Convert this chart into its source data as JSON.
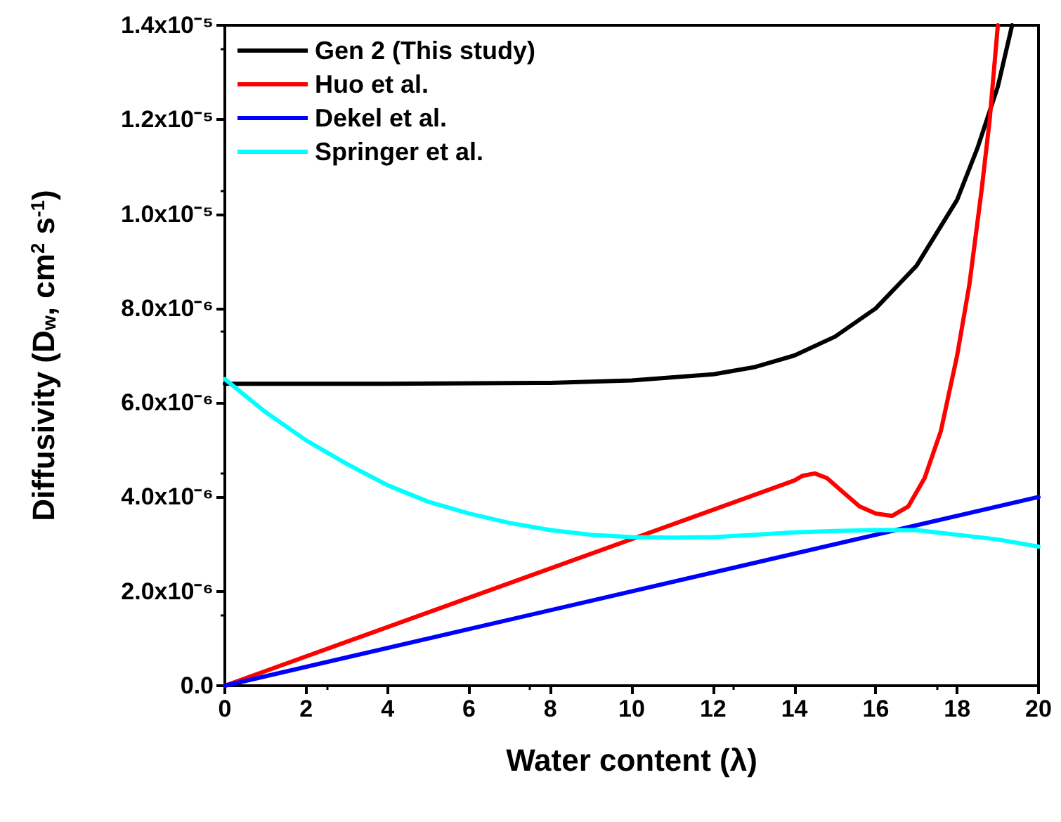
{
  "chart_data": {
    "type": "line",
    "xlabel": "Water content (λ)",
    "ylabel": "Diffusivity (D$_{w}$, cm$^{2}$ s$^{-1}$)",
    "xlim": [
      0,
      20
    ],
    "xticks": [
      0,
      2,
      4,
      6,
      8,
      10,
      12,
      14,
      16,
      18,
      20
    ],
    "ylim": [
      0,
      1.4e-05
    ],
    "yticks": [
      {
        "value": 0,
        "label": "0.0"
      },
      {
        "value": 2e-06,
        "label": "2.0x10⁻⁶"
      },
      {
        "value": 4e-06,
        "label": "4.0x10⁻⁶"
      },
      {
        "value": 6e-06,
        "label": "6.0x10⁻⁶"
      },
      {
        "value": 8e-06,
        "label": "8.0x10⁻⁶"
      },
      {
        "value": 1e-05,
        "label": "1.0x10⁻⁵"
      },
      {
        "value": 1.2e-05,
        "label": "1.2x10⁻⁵"
      },
      {
        "value": 1.4e-05,
        "label": "1.4x10⁻⁵"
      }
    ],
    "grid": false,
    "legend": "top left",
    "marker": "none",
    "line_style": "solid",
    "series": [
      {
        "name": "Gen 2 (This study)",
        "color": "#000000",
        "x": [
          0,
          4,
          8,
          10,
          12,
          13,
          14,
          15,
          16,
          17,
          18,
          18.5,
          19,
          19.35
        ],
        "values": [
          6.4e-06,
          6.4e-06,
          6.42e-06,
          6.47e-06,
          6.6e-06,
          6.75e-06,
          7e-06,
          7.4e-06,
          8e-06,
          8.9e-06,
          1.03e-05,
          1.14e-05,
          1.27e-05,
          1.4e-05
        ]
      },
      {
        "name": "Huo et al.",
        "color": "#ff0000",
        "x": [
          0,
          14,
          14.2,
          14.5,
          14.8,
          15.2,
          15.6,
          16,
          16.4,
          16.8,
          17.2,
          17.6,
          18,
          18.3,
          18.6,
          18.8,
          19.0
        ],
        "values": [
          0,
          4.35e-06,
          4.45e-06,
          4.5e-06,
          4.4e-06,
          4.1e-06,
          3.8e-06,
          3.65e-06,
          3.6e-06,
          3.8e-06,
          4.4e-06,
          5.4e-06,
          7e-06,
          8.5e-06,
          1.05e-05,
          1.2e-05,
          1.4e-05
        ]
      },
      {
        "name": "Dekel et al.",
        "color": "#0000ff",
        "x": [
          0,
          20
        ],
        "values": [
          0,
          4e-06
        ]
      },
      {
        "name": "Springer et al.",
        "color": "#00ffff",
        "x": [
          0,
          1,
          2,
          3,
          4,
          5,
          6,
          7,
          8,
          9,
          10,
          11,
          12,
          13,
          14,
          15,
          16,
          17,
          18,
          19,
          20
        ],
        "values": [
          6.5e-06,
          5.8e-06,
          5.2e-06,
          4.7e-06,
          4.25e-06,
          3.9e-06,
          3.65e-06,
          3.45e-06,
          3.3e-06,
          3.2e-06,
          3.15e-06,
          3.14e-06,
          3.15e-06,
          3.2e-06,
          3.25e-06,
          3.28e-06,
          3.3e-06,
          3.3e-06,
          3.2e-06,
          3.1e-06,
          2.95e-06
        ]
      }
    ]
  }
}
